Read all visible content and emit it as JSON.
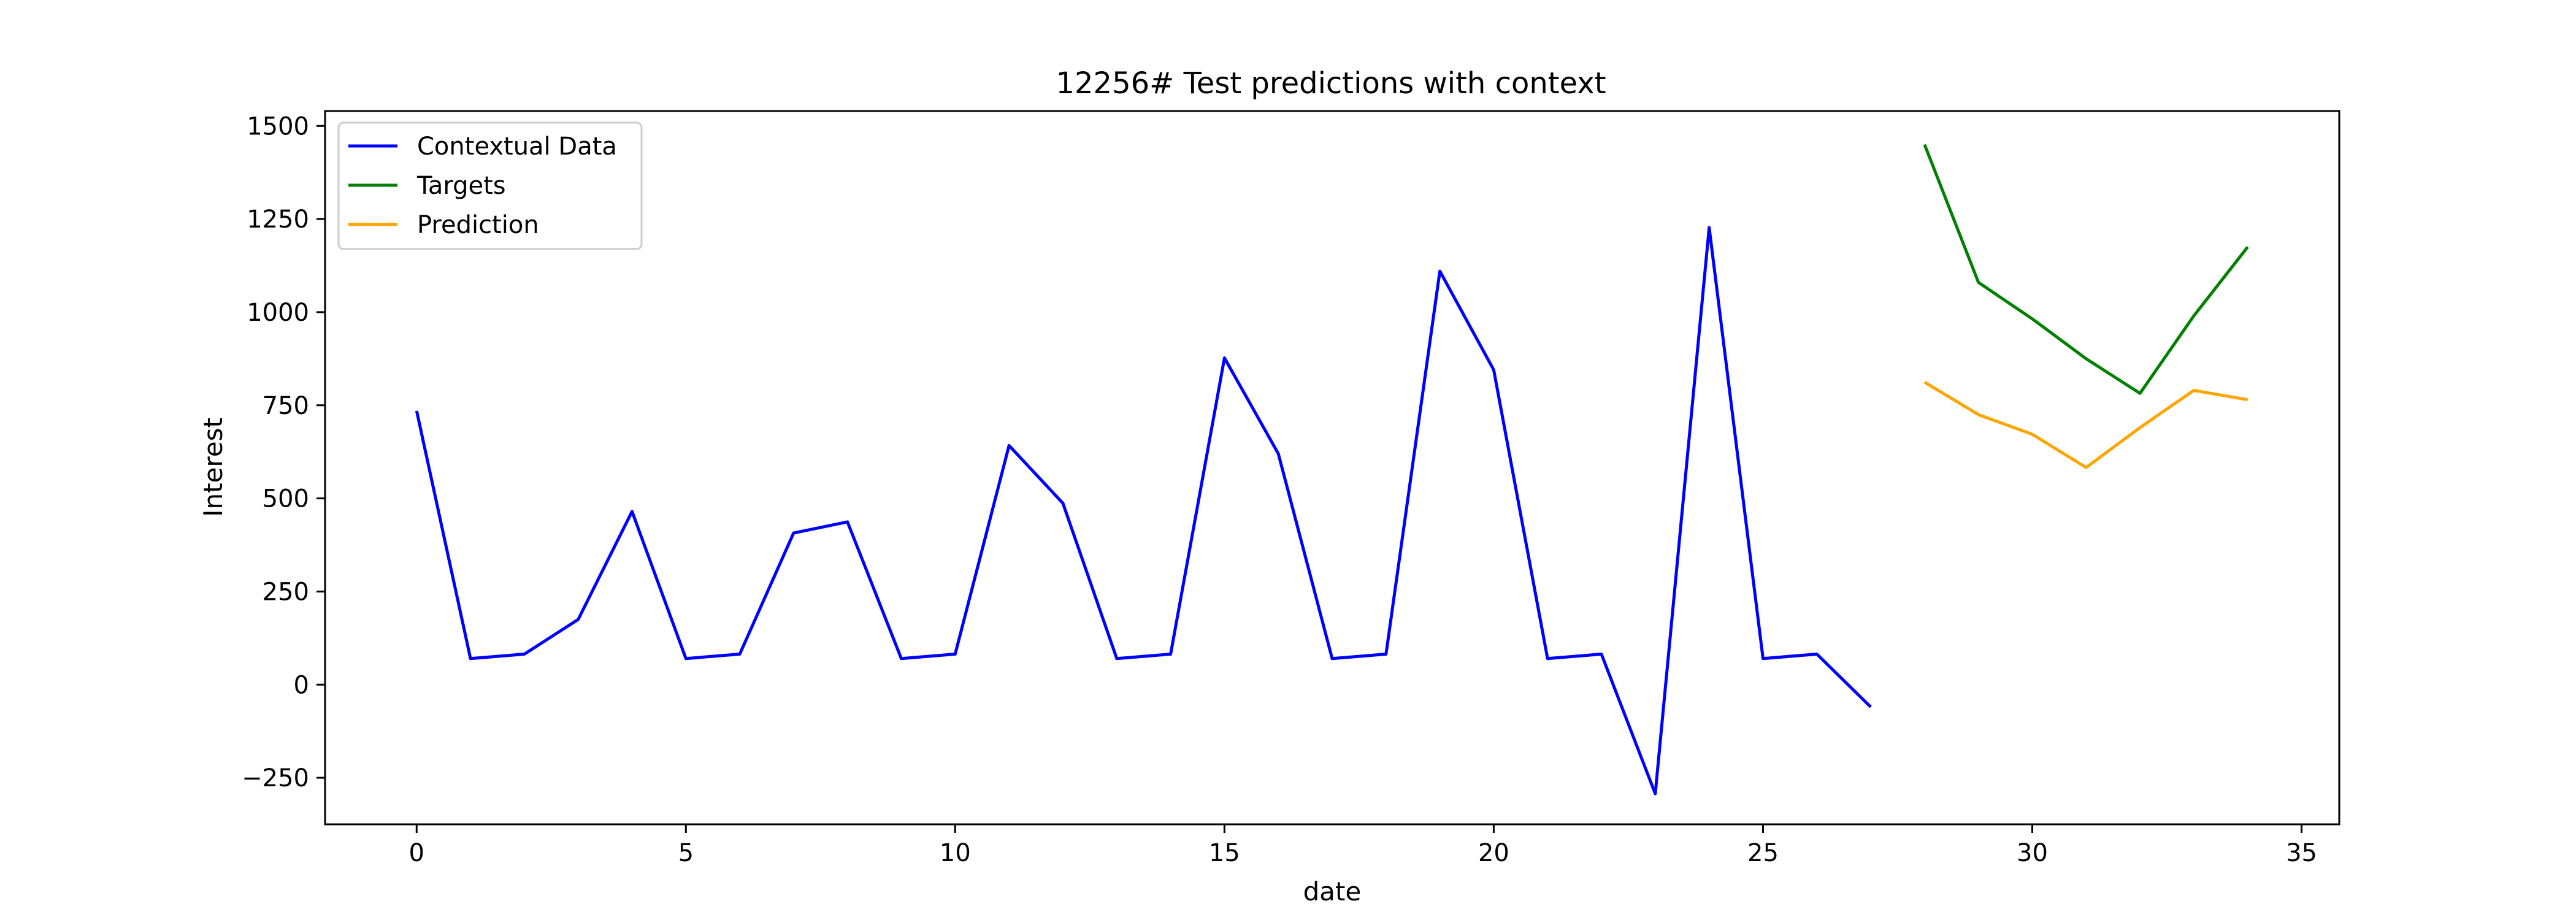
{
  "chart_data": {
    "type": "line",
    "title": "12256# Test predictions with context",
    "xlabel": "date",
    "ylabel": "Interest",
    "xlim": [
      -1.7,
      35.7
    ],
    "ylim": [
      -375,
      1540
    ],
    "x_ticks": [
      0,
      5,
      10,
      15,
      20,
      25,
      30,
      35
    ],
    "y_ticks": [
      -250,
      0,
      250,
      500,
      750,
      1000,
      1250,
      1500
    ],
    "y_tick_labels": [
      "−250",
      "0",
      "250",
      "500",
      "750",
      "1000",
      "1250",
      "1500"
    ],
    "grid": false,
    "legend_position": "upper-left",
    "series": [
      {
        "name": "Contextual Data",
        "color": "#0000ff",
        "x": [
          0,
          1,
          2,
          3,
          4,
          5,
          6,
          7,
          8,
          9,
          10,
          11,
          12,
          13,
          14,
          15,
          16,
          17,
          18,
          19,
          20,
          21,
          22,
          23,
          24,
          25,
          26,
          27
        ],
        "values": [
          735,
          70,
          82,
          175,
          465,
          70,
          82,
          407,
          437,
          70,
          82,
          642,
          487,
          70,
          82,
          877,
          620,
          70,
          82,
          1110,
          845,
          70,
          82,
          -293,
          1227,
          70,
          82,
          -60
        ]
      },
      {
        "name": "Targets",
        "color": "#008000",
        "x": [
          28,
          29,
          30,
          31,
          32,
          33,
          34
        ],
        "values": [
          1450,
          1080,
          982,
          875,
          782,
          990,
          1175
        ]
      },
      {
        "name": "Prediction",
        "color": "#ffa500",
        "x": [
          28,
          29,
          30,
          31,
          32,
          33,
          34
        ],
        "values": [
          812,
          725,
          672,
          583,
          690,
          790,
          765
        ]
      }
    ]
  }
}
